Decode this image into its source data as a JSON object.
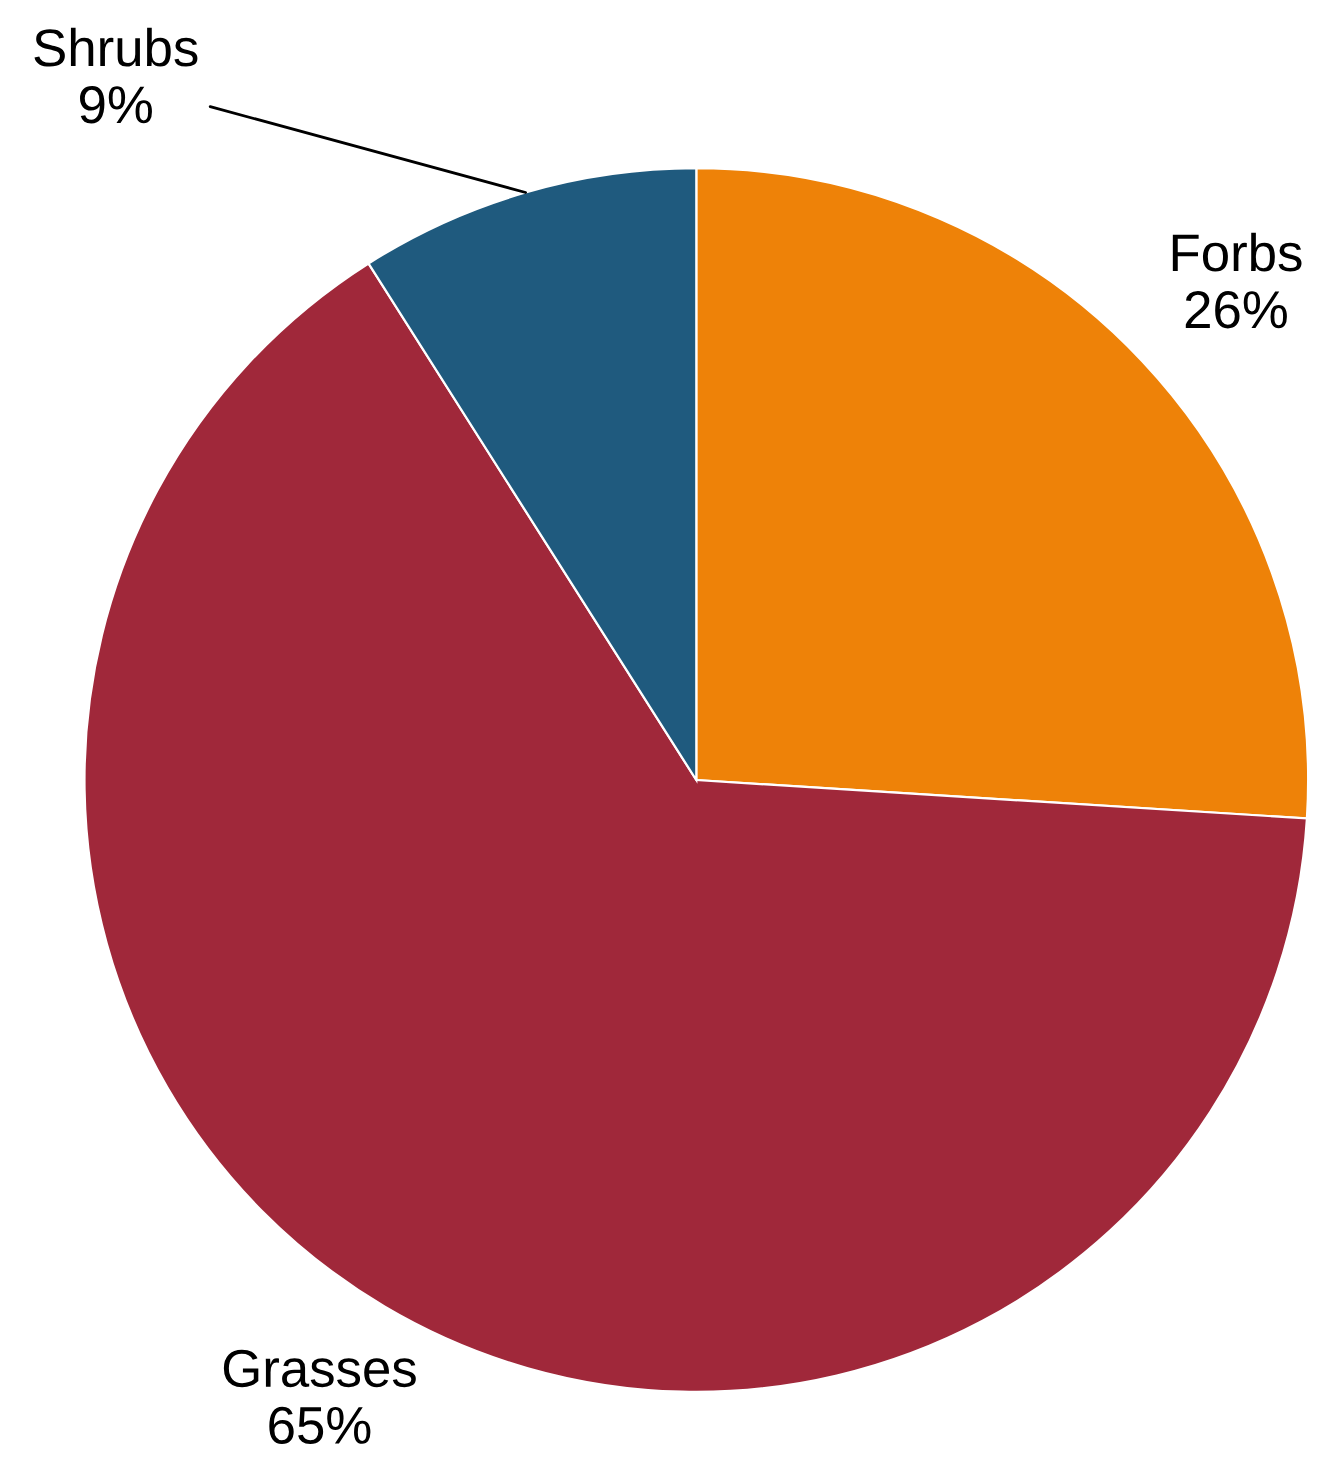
{
  "chart_data": {
    "type": "pie",
    "categories": [
      "Forbs",
      "Grasses",
      "Shrubs"
    ],
    "values": [
      26,
      65,
      9
    ],
    "value_labels": [
      "26%",
      "65%",
      "9%"
    ],
    "colors": [
      "#ee8208",
      "#a0283a",
      "#1f5a7e"
    ]
  }
}
